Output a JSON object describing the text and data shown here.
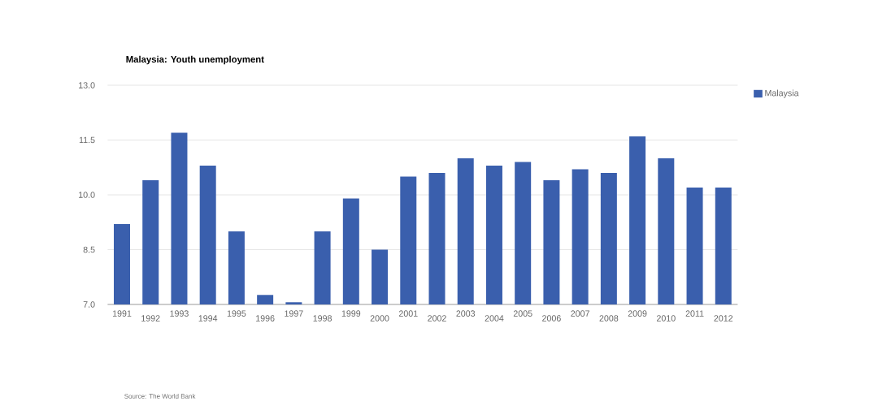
{
  "chart_data": {
    "type": "bar",
    "title": "Malaysia: Youth unemployment",
    "categories": [
      "1991",
      "1992",
      "1993",
      "1994",
      "1995",
      "1996",
      "1997",
      "1998",
      "1999",
      "2000",
      "2001",
      "2002",
      "2003",
      "2004",
      "2005",
      "2006",
      "2007",
      "2008",
      "2009",
      "2010",
      "2011",
      "2012"
    ],
    "series": [
      {
        "name": "Malaysia",
        "color": "#3a5fad",
        "values": [
          9.2,
          10.4,
          11.7,
          10.8,
          9.0,
          7.26,
          7.06,
          9.0,
          9.9,
          8.5,
          10.5,
          10.6,
          11.0,
          10.8,
          10.9,
          10.4,
          10.7,
          10.6,
          11.6,
          11.0,
          10.2,
          10.2
        ]
      }
    ],
    "ylim": [
      7,
      13
    ],
    "yticks": [
      {
        "value": 7,
        "label": "7.0"
      },
      {
        "value": 8.5,
        "label": "8.5"
      },
      {
        "value": 10,
        "label": "10.0"
      },
      {
        "value": 11.5,
        "label": "11.5"
      },
      {
        "value": 13,
        "label": "13.0"
      }
    ],
    "grid": "y",
    "legend": "top right",
    "annotations": [
      "Source: The World Bank"
    ]
  }
}
